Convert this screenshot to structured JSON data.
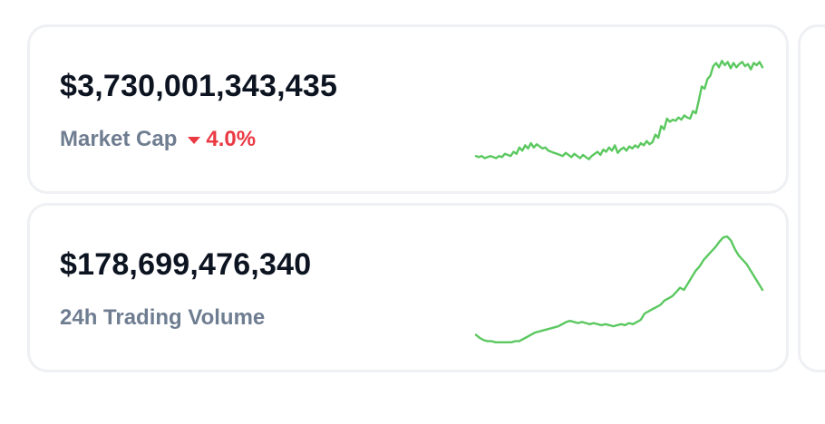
{
  "colors": {
    "positive": "#16c784",
    "sparkline": "#5ac85f",
    "negative": "#ea3943",
    "value_text": "#0d1421",
    "label_text": "#6f7d91"
  },
  "market_cap": {
    "value": "$3,730,001,343,435",
    "label": "Market Cap",
    "change_direction": "down",
    "change": "4.0%",
    "sparkline": [
      0.1,
      0.09,
      0.1,
      0.08,
      0.09,
      0.1,
      0.09,
      0.08,
      0.1,
      0.09,
      0.12,
      0.11,
      0.1,
      0.14,
      0.12,
      0.18,
      0.15,
      0.2,
      0.17,
      0.22,
      0.18,
      0.21,
      0.19,
      0.17,
      0.18,
      0.15,
      0.14,
      0.13,
      0.12,
      0.11,
      0.1,
      0.13,
      0.11,
      0.09,
      0.12,
      0.1,
      0.08,
      0.11,
      0.09,
      0.07,
      0.1,
      0.12,
      0.14,
      0.11,
      0.16,
      0.14,
      0.18,
      0.15,
      0.2,
      0.13,
      0.16,
      0.18,
      0.15,
      0.19,
      0.17,
      0.2,
      0.18,
      0.22,
      0.2,
      0.24,
      0.21,
      0.23,
      0.3,
      0.27,
      0.38,
      0.35,
      0.45,
      0.42,
      0.44,
      0.43,
      0.46,
      0.44,
      0.48,
      0.46,
      0.45,
      0.52,
      0.5,
      0.62,
      0.75,
      0.73,
      0.82,
      0.85,
      0.94,
      0.97,
      0.93,
      0.99,
      0.95,
      0.98,
      0.92,
      0.97,
      0.93,
      0.96,
      0.98,
      0.94,
      0.96,
      0.91,
      0.97,
      0.95,
      0.98,
      0.93
    ]
  },
  "trading_volume": {
    "value": "$178,699,476,340",
    "label": "24h Trading Volume",
    "sparkline": [
      0.08,
      0.05,
      0.03,
      0.02,
      0.02,
      0.01,
      0.01,
      0.01,
      0.01,
      0.01,
      0.02,
      0.02,
      0.04,
      0.06,
      0.08,
      0.1,
      0.11,
      0.12,
      0.13,
      0.14,
      0.15,
      0.16,
      0.18,
      0.2,
      0.21,
      0.2,
      0.19,
      0.2,
      0.19,
      0.18,
      0.19,
      0.18,
      0.17,
      0.18,
      0.17,
      0.16,
      0.17,
      0.18,
      0.17,
      0.19,
      0.18,
      0.2,
      0.22,
      0.28,
      0.3,
      0.32,
      0.34,
      0.36,
      0.4,
      0.42,
      0.44,
      0.48,
      0.52,
      0.5,
      0.56,
      0.62,
      0.68,
      0.72,
      0.78,
      0.82,
      0.86,
      0.9,
      0.95,
      0.99,
      1.0,
      0.96,
      0.88,
      0.82,
      0.78,
      0.74,
      0.68,
      0.62,
      0.56,
      0.5
    ]
  }
}
